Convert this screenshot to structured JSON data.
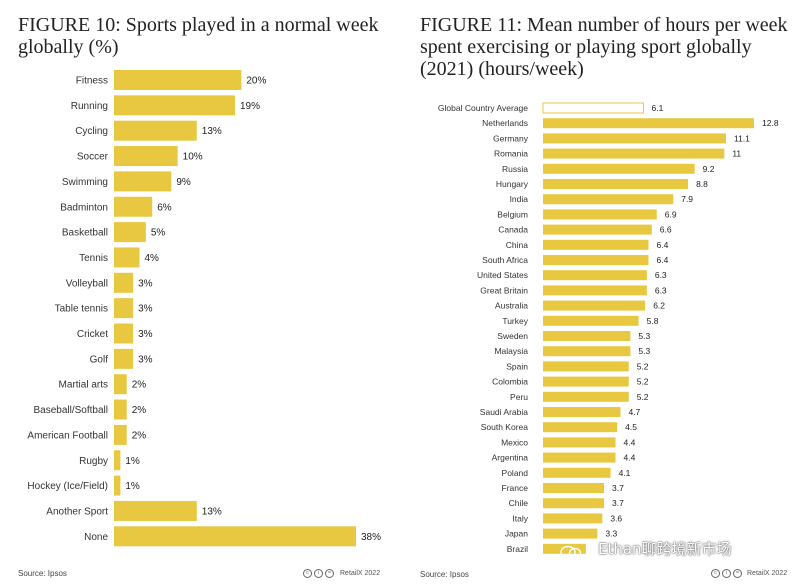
{
  "left": {
    "title": "FIGURE 10: Sports played in a normal week globally (%)",
    "source": "Source: Ipsos",
    "credit": "RetailX 2022"
  },
  "right": {
    "title": "FIGURE 11: Mean number of hours per week spent exercising or playing sport globally (2021) (hours/week)",
    "source": "Source: Ipsos",
    "credit": "RetailX 2022"
  },
  "watermark": "Ethan聊跨境新市场",
  "colors": {
    "bar": "#e8c840",
    "highlight_fill": "#ffffff",
    "highlight_stroke": "#e8c840"
  },
  "chart_data": [
    {
      "type": "bar",
      "orientation": "horizontal",
      "title": "FIGURE 10: Sports played in a normal week globally (%)",
      "categories": [
        "Fitness",
        "Running",
        "Cycling",
        "Soccer",
        "Swimming",
        "Badminton",
        "Basketball",
        "Tennis",
        "Volleyball",
        "Table tennis",
        "Cricket",
        "Golf",
        "Martial arts",
        "Baseball/Softball",
        "American Football",
        "Rugby",
        "Hockey (Ice/Field)",
        "Another Sport",
        "None"
      ],
      "values": [
        20,
        19,
        13,
        10,
        9,
        6,
        5,
        4,
        3,
        3,
        3,
        3,
        2,
        2,
        2,
        1,
        1,
        13,
        38
      ],
      "value_labels": [
        "20%",
        "19%",
        "13%",
        "10%",
        "9%",
        "6%",
        "5%",
        "4%",
        "3%",
        "3%",
        "3%",
        "3%",
        "2%",
        "2%",
        "2%",
        "1%",
        "1%",
        "13%",
        "38%"
      ],
      "xlim": [
        0,
        38
      ]
    },
    {
      "type": "bar",
      "orientation": "horizontal",
      "title": "FIGURE 11: Mean number of hours per week spent exercising or playing sport globally (2021) (hours/week)",
      "categories": [
        "Global Country Average",
        "Netherlands",
        "Germany",
        "Romania",
        "Russia",
        "Hungary",
        "India",
        "Belgium",
        "Canada",
        "China",
        "South Africa",
        "United States",
        "Great Britain",
        "Australia",
        "Turkey",
        "Sweden",
        "Malaysia",
        "Spain",
        "Colombia",
        "Peru",
        "Saudi Arabia",
        "South Korea",
        "Mexico",
        "Argentina",
        "Poland",
        "France",
        "Chile",
        "Italy",
        "Japan",
        "Brazil"
      ],
      "values": [
        6.1,
        12.8,
        11.1,
        11,
        9.2,
        8.8,
        7.9,
        6.9,
        6.6,
        6.4,
        6.4,
        6.3,
        6.3,
        6.2,
        5.8,
        5.3,
        5.3,
        5.2,
        5.2,
        5.2,
        4.7,
        4.5,
        4.4,
        4.4,
        4.1,
        3.7,
        3.7,
        3.6,
        3.3,
        2.6
      ],
      "value_labels": [
        "6.1",
        "12.8",
        "11.1",
        "11",
        "9.2",
        "8.8",
        "7.9",
        "6.9",
        "6.6",
        "6.4",
        "6.4",
        "6.3",
        "6.3",
        "6.2",
        "5.8",
        "5.3",
        "5.3",
        "5.2",
        "5.2",
        "5.2",
        "4.7",
        "4.5",
        "4.4",
        "4.4",
        "4.1",
        "3.7",
        "3.7",
        "3.6",
        "3.3",
        ""
      ],
      "highlight": "Global Country Average",
      "xlim": [
        0,
        12.8
      ]
    }
  ]
}
